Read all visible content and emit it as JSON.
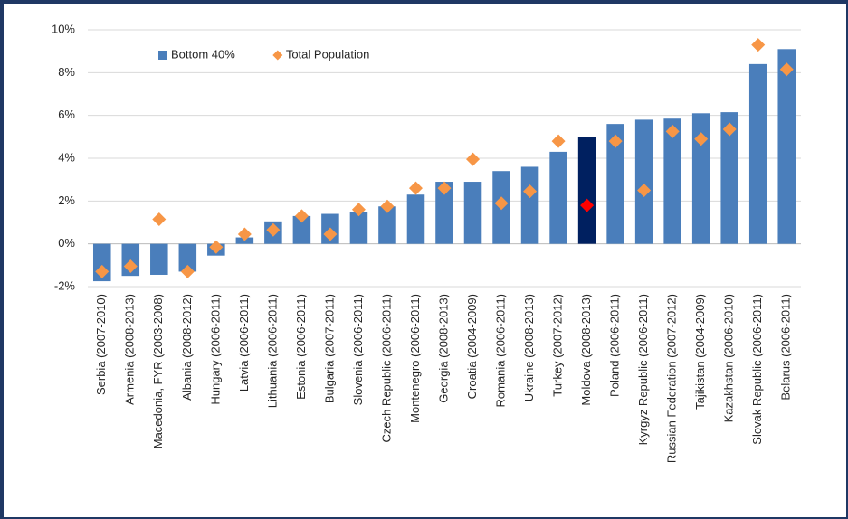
{
  "chart_data": {
    "type": "bar_scatter",
    "categories": [
      "Serbia (2007-2010)",
      "Armenia (2008-2013)",
      "Macedonia, FYR (2003-2008)",
      "Albania (2008-2012)",
      "Hungary (2006-2011)",
      "Latvia (2006-2011)",
      "Lithuania (2006-2011)",
      "Estonia (2006-2011)",
      "Bulgaria (2007-2011)",
      "Slovenia (2006-2011)",
      "Czech Republic (2006-2011)",
      "Montenegro (2006-2011)",
      "Georgia (2008-2013)",
      "Croatia (2004-2009)",
      "Romania (2006-2011)",
      "Ukraine (2008-2013)",
      "Turkey (2007-2012)",
      "Moldova (2008-2013)",
      "Poland (2006-2011)",
      "Kyrgyz Republic (2006-2011)",
      "Russian Federation (2007-2012)",
      "Tajikistan (2004-2009)",
      "Kazakhstan (2006-2010)",
      "Slovak Republic (2006-2011)",
      "Belarus (2006-2011)"
    ],
    "series": [
      {
        "name": "Bottom 40%",
        "mark": "bar",
        "color": "#4a7ebb",
        "colors": [
          "#4a7ebb",
          "#4a7ebb",
          "#4a7ebb",
          "#4a7ebb",
          "#4a7ebb",
          "#4a7ebb",
          "#4a7ebb",
          "#4a7ebb",
          "#4a7ebb",
          "#4a7ebb",
          "#4a7ebb",
          "#4a7ebb",
          "#4a7ebb",
          "#4a7ebb",
          "#4a7ebb",
          "#4a7ebb",
          "#4a7ebb",
          "#002060",
          "#4a7ebb",
          "#4a7ebb",
          "#4a7ebb",
          "#4a7ebb",
          "#4a7ebb",
          "#4a7ebb",
          "#4a7ebb"
        ],
        "values": [
          -1.75,
          -1.5,
          -1.45,
          -1.3,
          -0.55,
          0.3,
          1.05,
          1.3,
          1.4,
          1.5,
          1.75,
          2.3,
          2.9,
          2.9,
          3.4,
          3.6,
          4.3,
          5.0,
          5.6,
          5.8,
          5.85,
          6.1,
          6.15,
          8.4,
          9.1
        ]
      },
      {
        "name": "Total Population",
        "mark": "diamond",
        "color": "#f79646",
        "colors": [
          "#f79646",
          "#f79646",
          "#f79646",
          "#f79646",
          "#f79646",
          "#f79646",
          "#f79646",
          "#f79646",
          "#f79646",
          "#f79646",
          "#f79646",
          "#f79646",
          "#f79646",
          "#f79646",
          "#f79646",
          "#f79646",
          "#f79646",
          "#ff0000",
          "#f79646",
          "#f79646",
          "#f79646",
          "#f79646",
          "#f79646",
          "#f79646",
          "#f79646"
        ],
        "values": [
          -1.3,
          -1.05,
          1.15,
          -1.3,
          -0.15,
          0.45,
          0.65,
          1.3,
          0.45,
          1.6,
          1.75,
          2.6,
          2.6,
          3.95,
          1.9,
          2.45,
          4.8,
          1.8,
          4.8,
          2.5,
          5.25,
          4.9,
          5.35,
          9.3,
          8.15
        ]
      }
    ],
    "ylim": [
      -2,
      10
    ],
    "yticks": [
      {
        "value": -2,
        "label": "-2%"
      },
      {
        "value": 0,
        "label": "0%"
      },
      {
        "value": 2,
        "label": "2%"
      },
      {
        "value": 4,
        "label": "4%"
      },
      {
        "value": 6,
        "label": "6%"
      },
      {
        "value": 8,
        "label": "8%"
      },
      {
        "value": 10,
        "label": "10%"
      }
    ],
    "grid": true,
    "legend": "upper left"
  }
}
